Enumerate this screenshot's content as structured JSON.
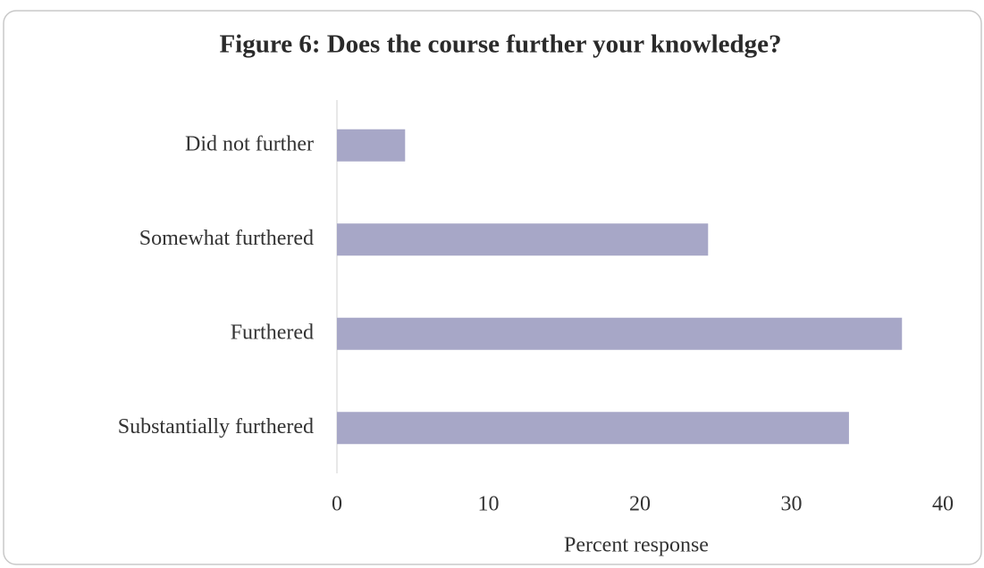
{
  "chart_data": {
    "type": "bar",
    "title": "Figure 6: Does the course further your knowledge?",
    "categories": [
      "Did not further",
      "Somewhat furthered",
      "Furthered",
      "Substantially furthered"
    ],
    "values": [
      4.5,
      24.5,
      37.3,
      33.8
    ],
    "color": "#a7a7c7",
    "xlabel": "Percent response",
    "xlim": [
      0,
      40
    ],
    "xticks": [
      0,
      10,
      20,
      30,
      40
    ]
  }
}
